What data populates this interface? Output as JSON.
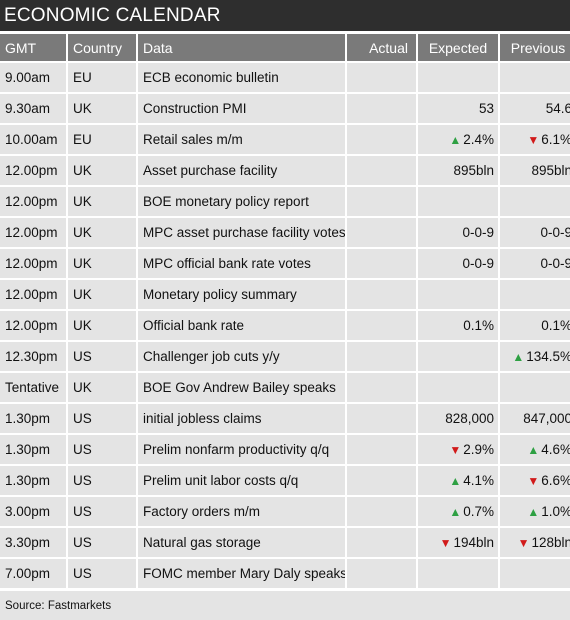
{
  "title": "ECONOMIC CALENDAR",
  "columns": {
    "gmt": "GMT",
    "country": "Country",
    "data": "Data",
    "actual": "Actual",
    "expected": "Expected",
    "previous": "Previous"
  },
  "rows": [
    {
      "gmt": "9.00am",
      "country": "EU",
      "data": "ECB economic bulletin",
      "actual": "",
      "expected": "",
      "expected_dir": "",
      "previous": "",
      "previous_dir": ""
    },
    {
      "gmt": "9.30am",
      "country": "UK",
      "data": "Construction PMI",
      "actual": "",
      "expected": "53",
      "expected_dir": "",
      "previous": "54.6",
      "previous_dir": ""
    },
    {
      "gmt": "10.00am",
      "country": "EU",
      "data": "Retail sales m/m",
      "actual": "",
      "expected": "2.4%",
      "expected_dir": "up",
      "previous": "6.1%",
      "previous_dir": "down"
    },
    {
      "gmt": "12.00pm",
      "country": "UK",
      "data": "Asset purchase facility",
      "actual": "",
      "expected": "895bln",
      "expected_dir": "",
      "previous": "895bln",
      "previous_dir": ""
    },
    {
      "gmt": "12.00pm",
      "country": "UK",
      "data": "BOE monetary policy report",
      "actual": "",
      "expected": "",
      "expected_dir": "",
      "previous": "",
      "previous_dir": ""
    },
    {
      "gmt": "12.00pm",
      "country": "UK",
      "data": "MPC asset purchase facility votes",
      "actual": "",
      "expected": "0-0-9",
      "expected_dir": "",
      "previous": "0-0-9",
      "previous_dir": ""
    },
    {
      "gmt": "12.00pm",
      "country": "UK",
      "data": "MPC official bank rate votes",
      "actual": "",
      "expected": "0-0-9",
      "expected_dir": "",
      "previous": "0-0-9",
      "previous_dir": ""
    },
    {
      "gmt": "12.00pm",
      "country": "UK",
      "data": "Monetary policy summary",
      "actual": "",
      "expected": "",
      "expected_dir": "",
      "previous": "",
      "previous_dir": ""
    },
    {
      "gmt": "12.00pm",
      "country": "UK",
      "data": "Official bank rate",
      "actual": "",
      "expected": "0.1%",
      "expected_dir": "",
      "previous": "0.1%",
      "previous_dir": ""
    },
    {
      "gmt": "12.30pm",
      "country": "US",
      "data": "Challenger job cuts y/y",
      "actual": "",
      "expected": "",
      "expected_dir": "",
      "previous": "134.5%",
      "previous_dir": "up"
    },
    {
      "gmt": "Tentative",
      "country": "UK",
      "data": "BOE Gov Andrew Bailey speaks",
      "actual": "",
      "expected": "",
      "expected_dir": "",
      "previous": "",
      "previous_dir": ""
    },
    {
      "gmt": "1.30pm",
      "country": "US",
      "data": "initial jobless claims",
      "actual": "",
      "expected": "828,000",
      "expected_dir": "",
      "previous": "847,000",
      "previous_dir": ""
    },
    {
      "gmt": "1.30pm",
      "country": "US",
      "data": "Prelim nonfarm productivity q/q",
      "actual": "",
      "expected": "2.9%",
      "expected_dir": "down",
      "previous": "4.6%",
      "previous_dir": "up"
    },
    {
      "gmt": "1.30pm",
      "country": "US",
      "data": "Prelim unit labor costs q/q",
      "actual": "",
      "expected": "4.1%",
      "expected_dir": "up",
      "previous": "6.6%",
      "previous_dir": "down"
    },
    {
      "gmt": "3.00pm",
      "country": "US",
      "data": "Factory orders m/m",
      "actual": "",
      "expected": "0.7%",
      "expected_dir": "up",
      "previous": "1.0%",
      "previous_dir": "up"
    },
    {
      "gmt": "3.30pm",
      "country": "US",
      "data": "Natural gas storage",
      "actual": "",
      "expected": "194bln",
      "expected_dir": "down",
      "previous": "128bln",
      "previous_dir": "down"
    },
    {
      "gmt": "7.00pm",
      "country": "US",
      "data": "FOMC member Mary Daly speaks",
      "actual": "",
      "expected": "",
      "expected_dir": "",
      "previous": "",
      "previous_dir": ""
    }
  ],
  "colors": {
    "up": "#2ea043",
    "down": "#d11a1a",
    "header_bg": "#7a7a7a",
    "title_bg": "#2e2e2e"
  },
  "source": "Source: Fastmarkets"
}
